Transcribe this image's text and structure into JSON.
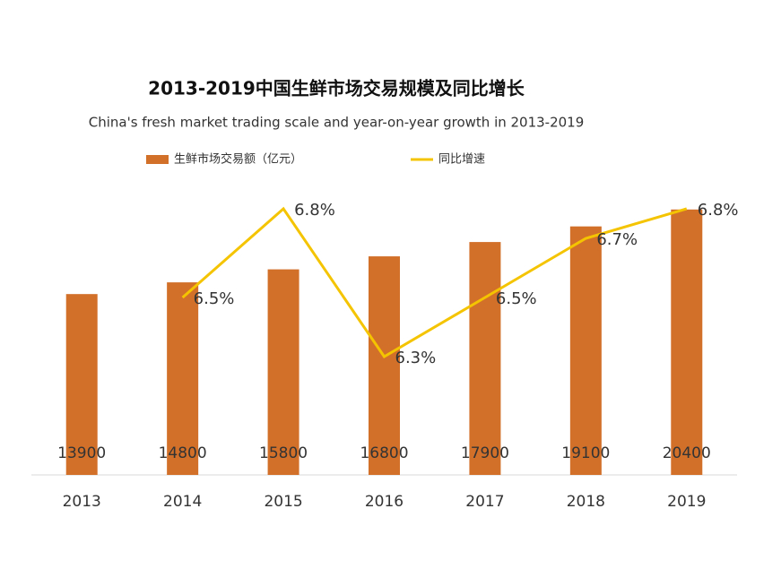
{
  "chart_data": {
    "type": "bar_line",
    "title": "2013-2019中国生鲜市场交易规模及同比增长",
    "subtitle": "China's fresh market trading scale and year-on-year growth in 2013-2019",
    "categories": [
      "2013",
      "2014",
      "2015",
      "2016",
      "2017",
      "2018",
      "2019"
    ],
    "series": [
      {
        "name": "生鲜市场交易额（亿元）",
        "type": "bar",
        "color": "#d2702a",
        "values": [
          13900,
          14800,
          15800,
          16800,
          17900,
          19100,
          20400
        ]
      },
      {
        "name": "同比增速",
        "type": "line",
        "axis": "y2",
        "color": "#f5c400",
        "values": [
          null,
          6.5,
          6.8,
          6.3,
          6.5,
          6.7,
          6.8
        ],
        "value_labels": [
          null,
          "6.5%",
          "6.8%",
          "6.3%",
          "6.5%",
          "6.7%",
          "6.8%"
        ]
      }
    ],
    "ylim": [
      0,
      25000
    ],
    "y2lim": [
      5.9,
      7.0
    ],
    "grid": false,
    "legend": "top"
  }
}
